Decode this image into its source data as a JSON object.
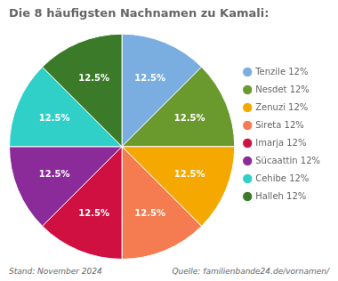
{
  "chart_data": {
    "type": "pie",
    "title": "Die 8 häufigsten Nachnamen zu Kamali:",
    "categories": [
      "Tenzile 12%",
      "Nesdet 12%",
      "Zenuzi 12%",
      "Sireta 12%",
      "Imarja 12%",
      "Sücaattin 12%",
      "Cehibe 12%",
      "Halleh 12%"
    ],
    "values": [
      12.5,
      12.5,
      12.5,
      12.5,
      12.5,
      12.5,
      12.5,
      12.5
    ],
    "value_labels": [
      "12.5%",
      "12.5%",
      "12.5%",
      "12.5%",
      "12.5%",
      "12.5%",
      "12.5%",
      "12.5%"
    ],
    "data_labels": true,
    "colors": [
      "#7aade0",
      "#6a9a2e",
      "#f5a800",
      "#f47c50",
      "#d01040",
      "#8b2b9a",
      "#30d0c8",
      "#3a7a28"
    ],
    "legend": "right",
    "annotations": [
      "Stand: November 2024",
      "Quelle: familienbande24.de/vornamen/"
    ]
  }
}
